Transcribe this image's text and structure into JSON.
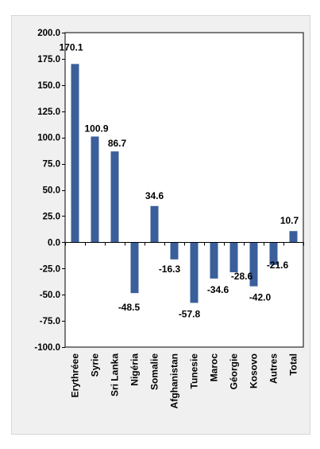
{
  "chart_data": {
    "type": "bar",
    "title": "",
    "xlabel": "",
    "ylabel": "",
    "categories": [
      "Erythréee",
      "Syrie",
      "Sri Lanka",
      "Nigéria",
      "Somalie",
      "Afghanistan",
      "Tunesie",
      "Maroc",
      "Géorgie",
      "Kosovo",
      "Autres",
      "Total"
    ],
    "values": [
      170.1,
      100.9,
      86.7,
      -48.5,
      34.6,
      -16.3,
      -57.8,
      -34.6,
      -28.6,
      -42.0,
      -21.6,
      10.7
    ],
    "data_labels": [
      "170.1",
      "100.9",
      "86.7",
      "-48.5",
      "34.6",
      "-16.3",
      "-57.8",
      "-34.6",
      "-28.6",
      "-42.0",
      "-21.6",
      "10.7"
    ],
    "ylim": [
      -100,
      200
    ],
    "yticks": [
      200,
      175,
      150,
      125,
      100,
      75,
      50,
      25,
      0,
      -25,
      -50,
      -75,
      -100
    ],
    "ytick_labels": [
      "200.0",
      "175.0",
      "150.0",
      "125.0",
      "100.0",
      "75.0",
      "50.0",
      "25.0",
      "0.0",
      "-25.0",
      "-50.0",
      "-75.0",
      "-100.0"
    ],
    "grid": true,
    "legend": "none",
    "bar_color": "#3a5f9a"
  }
}
